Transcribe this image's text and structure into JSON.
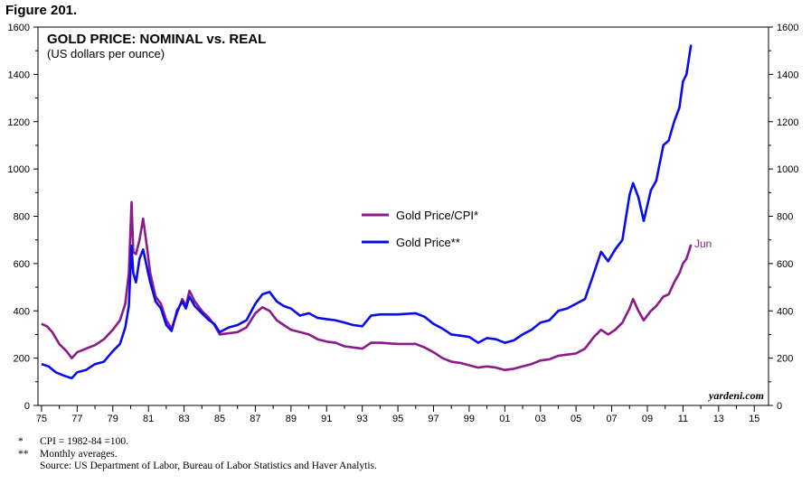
{
  "figure_label": "Figure 201.",
  "footnotes": [
    {
      "mark": "*",
      "text": "CPI = 1982-84 =100."
    },
    {
      "mark": "**",
      "text": "Monthly averages."
    },
    {
      "mark": "",
      "text": "Source: US Department of Labor, Bureau of Labor Statistics and Haver Analytis."
    }
  ],
  "chart_data": {
    "type": "line",
    "title": "GOLD PRICE: NOMINAL vs. REAL",
    "subtitle": "(US dollars per ounce)",
    "watermark": "yardeni.com",
    "end_annotation": "Jun",
    "xlim": [
      1974.8,
      2015.8
    ],
    "ylim": [
      0,
      1600
    ],
    "y_ticks": [
      0,
      200,
      400,
      600,
      800,
      1000,
      1200,
      1400,
      1600
    ],
    "x_tick_labels": [
      "75",
      "77",
      "79",
      "81",
      "83",
      "85",
      "87",
      "89",
      "91",
      "93",
      "95",
      "97",
      "99",
      "01",
      "03",
      "05",
      "07",
      "09",
      "11",
      "13",
      "15"
    ],
    "x_tick_years": [
      1975,
      1977,
      1979,
      1981,
      1983,
      1985,
      1987,
      1989,
      1991,
      1993,
      1995,
      1997,
      1999,
      2001,
      2003,
      2005,
      2007,
      2009,
      2011,
      2013,
      2015
    ],
    "grid": false,
    "legend_position": "center",
    "series": [
      {
        "name": "Gold Price/CPI*",
        "color": "#8b1a8b",
        "points": [
          [
            1975.0,
            345
          ],
          [
            1975.3,
            335
          ],
          [
            1975.6,
            310
          ],
          [
            1976.0,
            260
          ],
          [
            1976.4,
            230
          ],
          [
            1976.7,
            200
          ],
          [
            1977.0,
            225
          ],
          [
            1977.5,
            240
          ],
          [
            1978.0,
            255
          ],
          [
            1978.5,
            280
          ],
          [
            1979.0,
            320
          ],
          [
            1979.4,
            360
          ],
          [
            1979.7,
            430
          ],
          [
            1979.9,
            560
          ],
          [
            1980.05,
            860
          ],
          [
            1980.15,
            650
          ],
          [
            1980.3,
            640
          ],
          [
            1980.5,
            700
          ],
          [
            1980.7,
            790
          ],
          [
            1980.9,
            680
          ],
          [
            1981.1,
            560
          ],
          [
            1981.4,
            460
          ],
          [
            1981.7,
            430
          ],
          [
            1982.0,
            360
          ],
          [
            1982.3,
            325
          ],
          [
            1982.6,
            390
          ],
          [
            1982.9,
            450
          ],
          [
            1983.1,
            420
          ],
          [
            1983.3,
            485
          ],
          [
            1983.6,
            440
          ],
          [
            1984.0,
            400
          ],
          [
            1984.4,
            370
          ],
          [
            1984.7,
            340
          ],
          [
            1985.0,
            300
          ],
          [
            1985.5,
            305
          ],
          [
            1986.0,
            310
          ],
          [
            1986.5,
            330
          ],
          [
            1987.0,
            390
          ],
          [
            1987.4,
            415
          ],
          [
            1987.8,
            400
          ],
          [
            1988.2,
            360
          ],
          [
            1988.6,
            340
          ],
          [
            1989.0,
            320
          ],
          [
            1989.5,
            310
          ],
          [
            1990.0,
            300
          ],
          [
            1990.5,
            280
          ],
          [
            1991.0,
            270
          ],
          [
            1991.5,
            265
          ],
          [
            1992.0,
            250
          ],
          [
            1992.5,
            245
          ],
          [
            1993.0,
            240
          ],
          [
            1993.5,
            265
          ],
          [
            1994.0,
            265
          ],
          [
            1995.0,
            260
          ],
          [
            1996.0,
            260
          ],
          [
            1996.5,
            245
          ],
          [
            1997.0,
            225
          ],
          [
            1997.5,
            200
          ],
          [
            1998.0,
            185
          ],
          [
            1998.5,
            180
          ],
          [
            1999.0,
            170
          ],
          [
            1999.5,
            160
          ],
          [
            2000.0,
            165
          ],
          [
            2000.5,
            160
          ],
          [
            2001.0,
            150
          ],
          [
            2001.5,
            155
          ],
          [
            2002.0,
            165
          ],
          [
            2002.5,
            175
          ],
          [
            2003.0,
            190
          ],
          [
            2003.5,
            195
          ],
          [
            2004.0,
            210
          ],
          [
            2004.5,
            215
          ],
          [
            2005.0,
            220
          ],
          [
            2005.5,
            240
          ],
          [
            2006.0,
            290
          ],
          [
            2006.4,
            320
          ],
          [
            2006.8,
            300
          ],
          [
            2007.2,
            320
          ],
          [
            2007.6,
            350
          ],
          [
            2008.0,
            410
          ],
          [
            2008.2,
            450
          ],
          [
            2008.5,
            400
          ],
          [
            2008.8,
            360
          ],
          [
            2009.2,
            400
          ],
          [
            2009.5,
            420
          ],
          [
            2009.9,
            460
          ],
          [
            2010.2,
            470
          ],
          [
            2010.5,
            520
          ],
          [
            2010.8,
            560
          ],
          [
            2011.0,
            600
          ],
          [
            2011.2,
            620
          ],
          [
            2011.45,
            680
          ]
        ]
      },
      {
        "name": "Gold Price**",
        "color": "#0a0aee",
        "points": [
          [
            1975.0,
            175
          ],
          [
            1975.4,
            165
          ],
          [
            1975.8,
            140
          ],
          [
            1976.3,
            125
          ],
          [
            1976.7,
            115
          ],
          [
            1977.0,
            140
          ],
          [
            1977.5,
            150
          ],
          [
            1978.0,
            175
          ],
          [
            1978.5,
            185
          ],
          [
            1979.0,
            230
          ],
          [
            1979.4,
            260
          ],
          [
            1979.7,
            330
          ],
          [
            1979.9,
            420
          ],
          [
            1980.05,
            675
          ],
          [
            1980.15,
            560
          ],
          [
            1980.3,
            520
          ],
          [
            1980.5,
            620
          ],
          [
            1980.7,
            660
          ],
          [
            1980.9,
            590
          ],
          [
            1981.1,
            520
          ],
          [
            1981.4,
            440
          ],
          [
            1981.7,
            410
          ],
          [
            1982.0,
            340
          ],
          [
            1982.3,
            315
          ],
          [
            1982.6,
            400
          ],
          [
            1982.9,
            440
          ],
          [
            1983.1,
            410
          ],
          [
            1983.3,
            460
          ],
          [
            1983.6,
            420
          ],
          [
            1984.0,
            390
          ],
          [
            1984.4,
            360
          ],
          [
            1984.7,
            345
          ],
          [
            1985.0,
            310
          ],
          [
            1985.5,
            330
          ],
          [
            1986.0,
            340
          ],
          [
            1986.5,
            360
          ],
          [
            1987.0,
            430
          ],
          [
            1987.4,
            470
          ],
          [
            1987.8,
            480
          ],
          [
            1988.2,
            440
          ],
          [
            1988.6,
            420
          ],
          [
            1989.0,
            410
          ],
          [
            1989.5,
            380
          ],
          [
            1990.0,
            390
          ],
          [
            1990.5,
            370
          ],
          [
            1991.0,
            365
          ],
          [
            1991.5,
            360
          ],
          [
            1992.0,
            350
          ],
          [
            1992.5,
            340
          ],
          [
            1993.0,
            335
          ],
          [
            1993.5,
            380
          ],
          [
            1994.0,
            385
          ],
          [
            1995.0,
            385
          ],
          [
            1996.0,
            390
          ],
          [
            1996.5,
            375
          ],
          [
            1997.0,
            345
          ],
          [
            1997.5,
            325
          ],
          [
            1998.0,
            300
          ],
          [
            1998.5,
            295
          ],
          [
            1999.0,
            290
          ],
          [
            1999.5,
            265
          ],
          [
            2000.0,
            285
          ],
          [
            2000.5,
            280
          ],
          [
            2001.0,
            265
          ],
          [
            2001.5,
            275
          ],
          [
            2002.0,
            300
          ],
          [
            2002.5,
            320
          ],
          [
            2003.0,
            350
          ],
          [
            2003.5,
            360
          ],
          [
            2004.0,
            400
          ],
          [
            2004.5,
            410
          ],
          [
            2005.0,
            430
          ],
          [
            2005.5,
            450
          ],
          [
            2006.0,
            560
          ],
          [
            2006.4,
            650
          ],
          [
            2006.8,
            610
          ],
          [
            2007.2,
            660
          ],
          [
            2007.6,
            700
          ],
          [
            2008.0,
            890
          ],
          [
            2008.2,
            940
          ],
          [
            2008.5,
            880
          ],
          [
            2008.8,
            780
          ],
          [
            2009.2,
            910
          ],
          [
            2009.5,
            950
          ],
          [
            2009.9,
            1100
          ],
          [
            2010.2,
            1120
          ],
          [
            2010.5,
            1200
          ],
          [
            2010.8,
            1260
          ],
          [
            2011.0,
            1370
          ],
          [
            2011.2,
            1400
          ],
          [
            2011.45,
            1525
          ]
        ]
      }
    ]
  }
}
